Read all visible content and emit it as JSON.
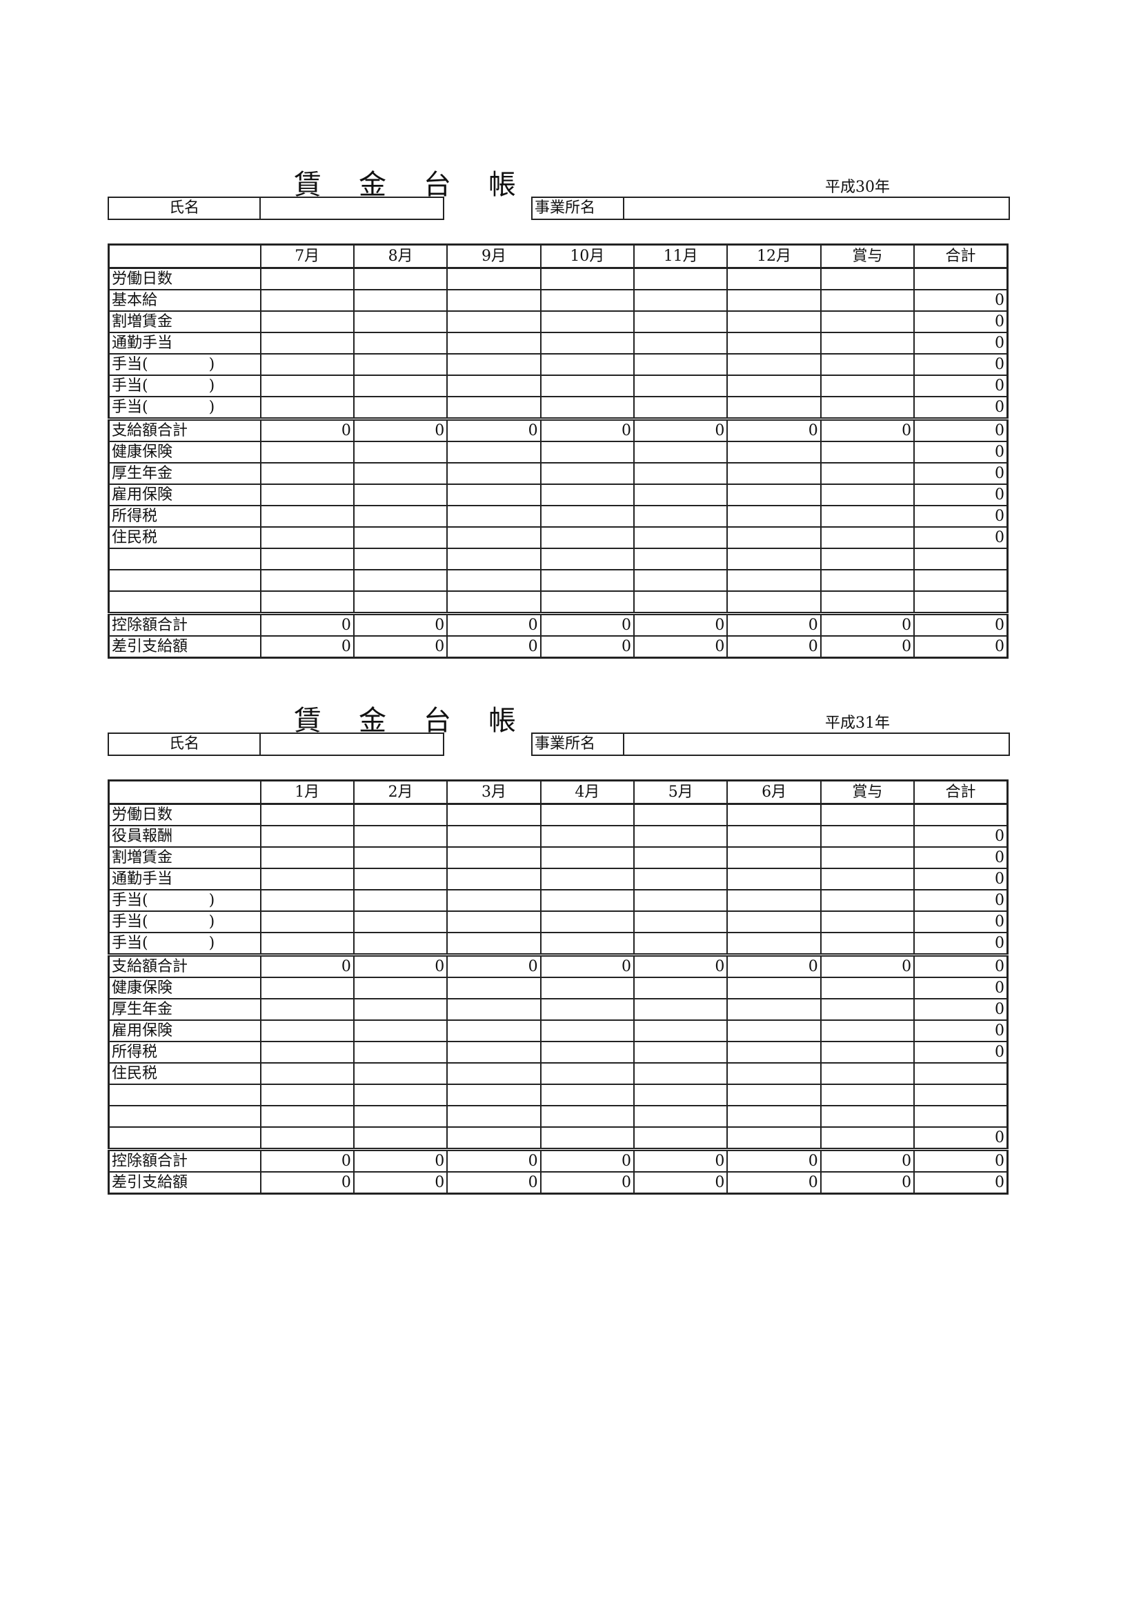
{
  "ledgers": [
    {
      "title": "賃金台帳",
      "year": "平成30年",
      "name_label": "氏名",
      "office_label": "事業所名",
      "columns": [
        "",
        "7月",
        "8月",
        "9月",
        "10月",
        "11月",
        "12月",
        "賞与",
        "合計"
      ],
      "rows": [
        {
          "label": "労働日数",
          "values": [
            "",
            "",
            "",
            "",
            "",
            "",
            "",
            ""
          ]
        },
        {
          "label": "基本給",
          "values": [
            "",
            "",
            "",
            "",
            "",
            "",
            "",
            "0"
          ]
        },
        {
          "label": "割増賃金",
          "values": [
            "",
            "",
            "",
            "",
            "",
            "",
            "",
            "0"
          ]
        },
        {
          "label": "通勤手当",
          "values": [
            "",
            "",
            "",
            "",
            "",
            "",
            "",
            "0"
          ]
        },
        {
          "label": "手当(　　　　)",
          "values": [
            "",
            "",
            "",
            "",
            "",
            "",
            "",
            "0"
          ]
        },
        {
          "label": "手当(　　　　)",
          "values": [
            "",
            "",
            "",
            "",
            "",
            "",
            "",
            "0"
          ]
        },
        {
          "label": "手当(　　　　)",
          "values": [
            "",
            "",
            "",
            "",
            "",
            "",
            "",
            "0"
          ]
        },
        {
          "label": "支給額合計",
          "sep": true,
          "values": [
            "0",
            "0",
            "0",
            "0",
            "0",
            "0",
            "0",
            "0"
          ]
        },
        {
          "label": "健康保険",
          "values": [
            "",
            "",
            "",
            "",
            "",
            "",
            "",
            "0"
          ]
        },
        {
          "label": "厚生年金",
          "values": [
            "",
            "",
            "",
            "",
            "",
            "",
            "",
            "0"
          ]
        },
        {
          "label": "雇用保険",
          "values": [
            "",
            "",
            "",
            "",
            "",
            "",
            "",
            "0"
          ]
        },
        {
          "label": "所得税",
          "values": [
            "",
            "",
            "",
            "",
            "",
            "",
            "",
            "0"
          ]
        },
        {
          "label": "住民税",
          "values": [
            "",
            "",
            "",
            "",
            "",
            "",
            "",
            "0"
          ]
        },
        {
          "label": "",
          "values": [
            "",
            "",
            "",
            "",
            "",
            "",
            "",
            ""
          ]
        },
        {
          "label": "",
          "values": [
            "",
            "",
            "",
            "",
            "",
            "",
            "",
            ""
          ]
        },
        {
          "label": "",
          "values": [
            "",
            "",
            "",
            "",
            "",
            "",
            "",
            ""
          ]
        },
        {
          "label": "控除額合計",
          "sep": true,
          "values": [
            "0",
            "0",
            "0",
            "0",
            "0",
            "0",
            "0",
            "0"
          ]
        },
        {
          "label": "差引支給額",
          "values": [
            "0",
            "0",
            "0",
            "0",
            "0",
            "0",
            "0",
            "0"
          ]
        }
      ]
    },
    {
      "title": "賃金台帳",
      "year": "平成31年",
      "name_label": "氏名",
      "office_label": "事業所名",
      "columns": [
        "",
        "1月",
        "2月",
        "3月",
        "4月",
        "5月",
        "6月",
        "賞与",
        "合計"
      ],
      "rows": [
        {
          "label": "労働日数",
          "values": [
            "",
            "",
            "",
            "",
            "",
            "",
            "",
            ""
          ]
        },
        {
          "label": "役員報酬",
          "values": [
            "",
            "",
            "",
            "",
            "",
            "",
            "",
            "0"
          ]
        },
        {
          "label": "割増賃金",
          "values": [
            "",
            "",
            "",
            "",
            "",
            "",
            "",
            "0"
          ]
        },
        {
          "label": "通勤手当",
          "values": [
            "",
            "",
            "",
            "",
            "",
            "",
            "",
            "0"
          ]
        },
        {
          "label": "手当(　　　　)",
          "values": [
            "",
            "",
            "",
            "",
            "",
            "",
            "",
            "0"
          ]
        },
        {
          "label": "手当(　　　　)",
          "values": [
            "",
            "",
            "",
            "",
            "",
            "",
            "",
            "0"
          ]
        },
        {
          "label": "手当(　　　　)",
          "values": [
            "",
            "",
            "",
            "",
            "",
            "",
            "",
            "0"
          ]
        },
        {
          "label": "支給額合計",
          "sep": true,
          "values": [
            "0",
            "0",
            "0",
            "0",
            "0",
            "0",
            "0",
            "0"
          ]
        },
        {
          "label": "健康保険",
          "values": [
            "",
            "",
            "",
            "",
            "",
            "",
            "",
            "0"
          ]
        },
        {
          "label": "厚生年金",
          "values": [
            "",
            "",
            "",
            "",
            "",
            "",
            "",
            "0"
          ]
        },
        {
          "label": "雇用保険",
          "values": [
            "",
            "",
            "",
            "",
            "",
            "",
            "",
            "0"
          ]
        },
        {
          "label": "所得税",
          "values": [
            "",
            "",
            "",
            "",
            "",
            "",
            "",
            "0"
          ]
        },
        {
          "label": "住民税",
          "values": [
            "",
            "",
            "",
            "",
            "",
            "",
            "",
            ""
          ]
        },
        {
          "label": "",
          "values": [
            "",
            "",
            "",
            "",
            "",
            "",
            "",
            ""
          ]
        },
        {
          "label": "",
          "values": [
            "",
            "",
            "",
            "",
            "",
            "",
            "",
            ""
          ]
        },
        {
          "label": "",
          "values": [
            "",
            "",
            "",
            "",
            "",
            "",
            "",
            "0"
          ]
        },
        {
          "label": "控除額合計",
          "sep": true,
          "values": [
            "0",
            "0",
            "0",
            "0",
            "0",
            "0",
            "0",
            "0"
          ]
        },
        {
          "label": "差引支給額",
          "values": [
            "0",
            "0",
            "0",
            "0",
            "0",
            "0",
            "0",
            "0"
          ]
        }
      ]
    }
  ]
}
